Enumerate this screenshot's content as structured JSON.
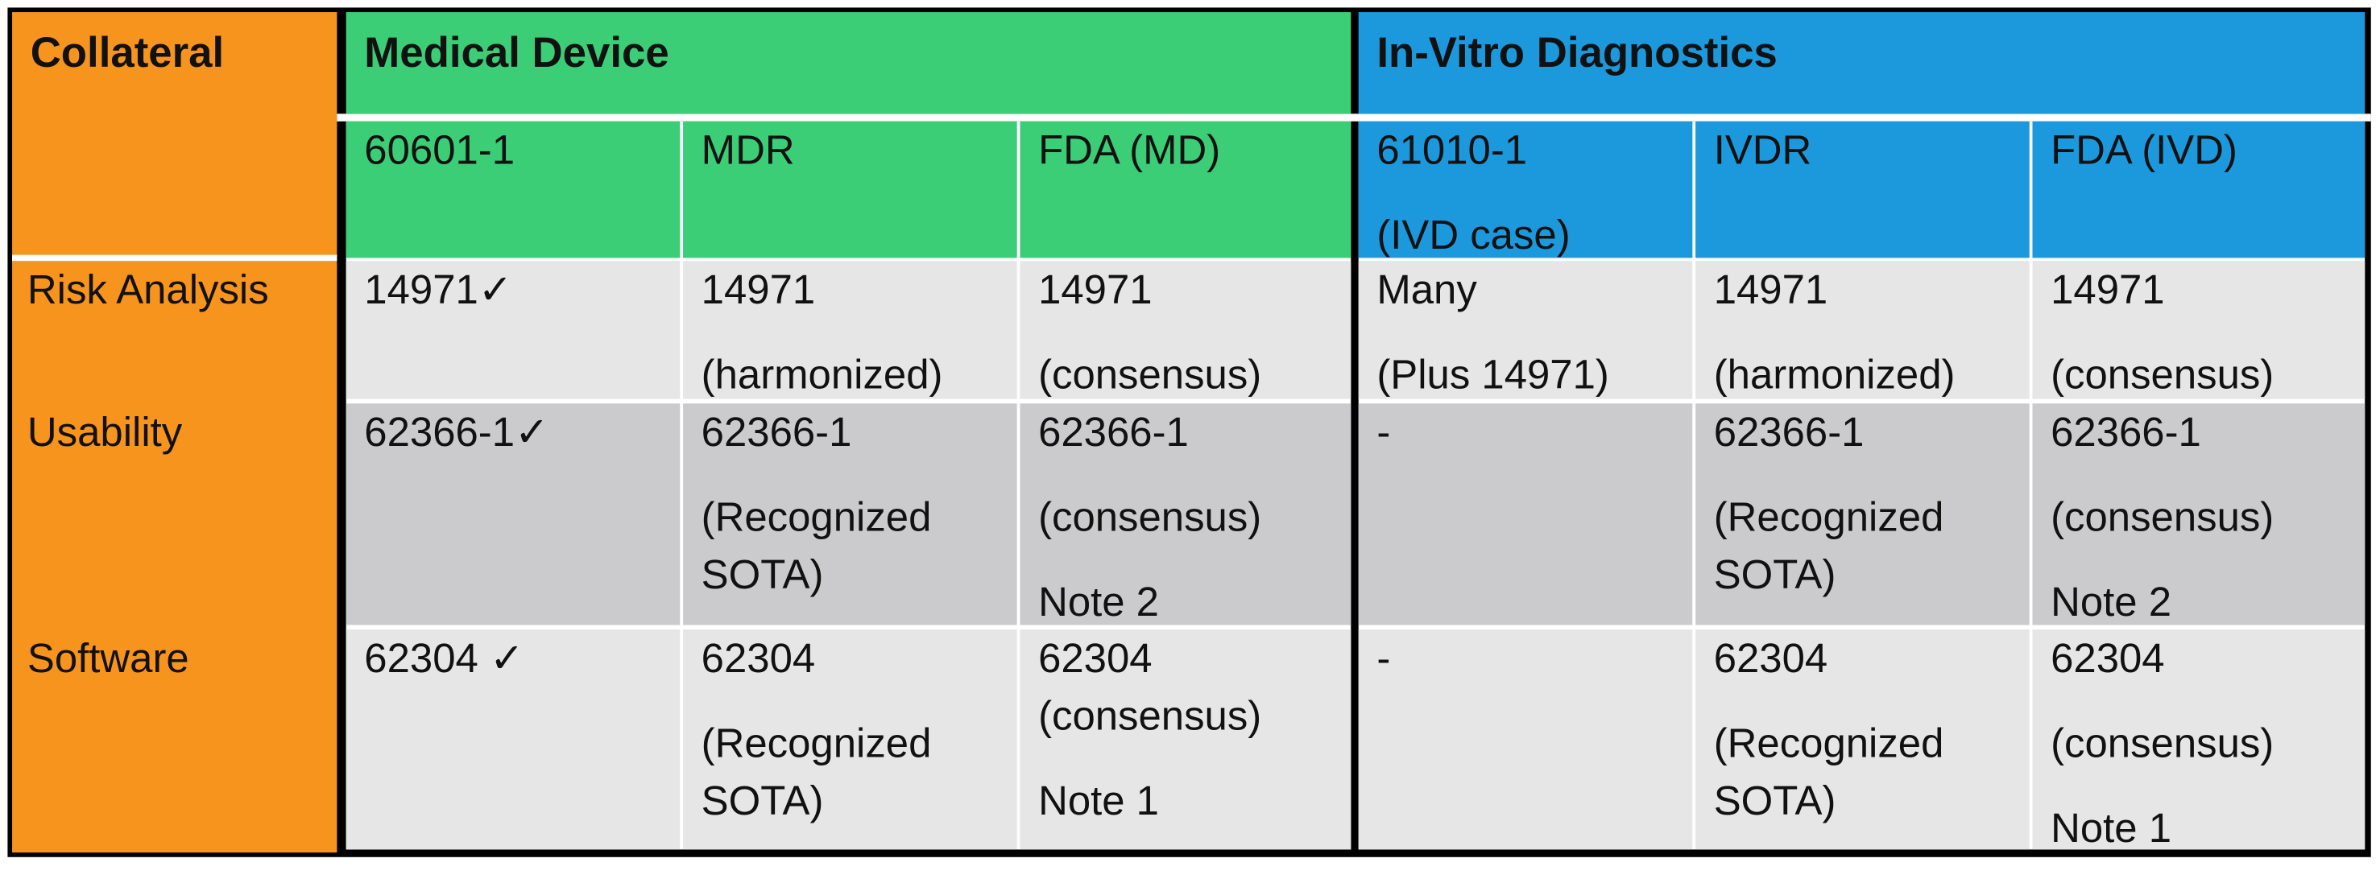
{
  "header": {
    "collateral": "Collateral",
    "groups": [
      {
        "title": "Medical Device",
        "columns": [
          [
            "60601-1"
          ],
          [
            "MDR"
          ],
          [
            "FDA (MD)"
          ]
        ]
      },
      {
        "title": "In-Vitro Diagnostics",
        "columns": [
          [
            "61010-1",
            "(IVD case)"
          ],
          [
            "IVDR"
          ],
          [
            "FDA (IVD)"
          ]
        ]
      }
    ]
  },
  "rows": [
    {
      "label": "Risk Analysis",
      "cells": [
        [
          "14971✓"
        ],
        [
          "14971",
          "(harmonized)"
        ],
        [
          "14971",
          "(consensus)"
        ],
        [
          "Many",
          "(Plus 14971)"
        ],
        [
          "14971",
          "(harmonized)"
        ],
        [
          "14971",
          "(consensus)"
        ]
      ]
    },
    {
      "label": "Usability",
      "cells": [
        [
          "62366-1✓"
        ],
        [
          "62366-1",
          "(Recognized SOTA)"
        ],
        [
          "62366-1",
          "(consensus)",
          "Note 2"
        ],
        [
          "-"
        ],
        [
          "62366-1",
          "(Recognized SOTA)"
        ],
        [
          "62366-1",
          "(consensus)",
          "Note 2"
        ]
      ]
    },
    {
      "label": "Software",
      "cells": [
        [
          "62304 ✓"
        ],
        [
          "62304",
          "(Recognized SOTA)"
        ],
        [
          "62304 (consensus)",
          "Note 1"
        ],
        [
          "-"
        ],
        [
          "62304",
          "(Recognized SOTA)"
        ],
        [
          "62304",
          "(consensus)",
          "Note 1"
        ]
      ]
    }
  ]
}
